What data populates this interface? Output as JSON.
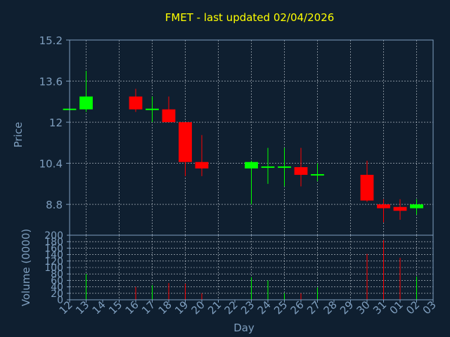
{
  "chart_data": {
    "type": "candlestick",
    "title": "FMET - last updated 02/04/2026",
    "xlabel": "Day",
    "price_panel": {
      "ylabel": "Price",
      "ylim": [
        7.6,
        15.2
      ],
      "yticks": [
        8.8,
        10.4,
        12,
        13.6,
        15.2
      ],
      "ytick_labels": [
        "8.8",
        "10.4",
        "12",
        "13.6",
        "15.2"
      ]
    },
    "volume_panel": {
      "ylabel": "Volume (0000)",
      "ylim": [
        0,
        200
      ],
      "yticks": [
        0,
        20,
        40,
        60,
        80,
        100,
        120,
        140,
        160,
        180,
        200
      ],
      "ytick_labels": [
        "0",
        "20",
        "40",
        "60",
        "80",
        "100",
        "120",
        "140",
        "160",
        "180",
        "200"
      ]
    },
    "x_tick_labels": [
      "12",
      "13",
      "14",
      "15",
      "16",
      "17",
      "18",
      "19",
      "20",
      "21",
      "22",
      "23",
      "24",
      "25",
      "26",
      "27",
      "28",
      "29",
      "30",
      "31",
      "01",
      "02",
      "03"
    ],
    "grid": true,
    "up_color": "#00ff00",
    "down_color": "#ff0000",
    "candles": [
      {
        "day": "12",
        "open": 12.5,
        "high": 12.5,
        "low": 12.5,
        "close": 12.5,
        "volume": 0
      },
      {
        "day": "13",
        "open": 12.5,
        "high": 14.0,
        "low": 12.4,
        "close": 13.0,
        "volume": 80
      },
      {
        "day": "16",
        "open": 13.0,
        "high": 13.3,
        "low": 12.4,
        "close": 12.5,
        "volume": 40
      },
      {
        "day": "17",
        "open": 12.5,
        "high": 13.0,
        "low": 12.0,
        "close": 12.5,
        "volume": 45
      },
      {
        "day": "18",
        "open": 12.5,
        "high": 13.0,
        "low": 12.0,
        "close": 12.0,
        "volume": 52
      },
      {
        "day": "19",
        "open": 12.0,
        "high": 12.0,
        "low": 9.9,
        "close": 10.45,
        "volume": 50
      },
      {
        "day": "20",
        "open": 10.45,
        "high": 11.5,
        "low": 9.9,
        "close": 10.2,
        "volume": 20
      },
      {
        "day": "23",
        "open": 10.2,
        "high": 10.5,
        "low": 8.8,
        "close": 10.45,
        "volume": 70
      },
      {
        "day": "24",
        "open": 10.25,
        "high": 11.0,
        "low": 9.6,
        "close": 10.25,
        "volume": 60
      },
      {
        "day": "25",
        "open": 10.25,
        "high": 11.0,
        "low": 9.5,
        "close": 10.25,
        "volume": 20
      },
      {
        "day": "26",
        "open": 10.25,
        "high": 11.0,
        "low": 9.5,
        "close": 9.95,
        "volume": 20
      },
      {
        "day": "27",
        "open": 9.95,
        "high": 10.4,
        "low": 9.7,
        "close": 9.95,
        "volume": 38
      },
      {
        "day": "30",
        "open": 9.95,
        "high": 10.5,
        "low": 8.9,
        "close": 8.95,
        "volume": 142
      },
      {
        "day": "31",
        "open": 8.8,
        "high": 9.0,
        "low": 8.1,
        "close": 8.65,
        "volume": 185
      },
      {
        "day": "01",
        "open": 8.7,
        "high": 9.0,
        "low": 8.2,
        "close": 8.55,
        "volume": 130
      },
      {
        "day": "02",
        "open": 8.65,
        "high": 9.0,
        "low": 8.4,
        "close": 8.8,
        "volume": 72
      }
    ]
  }
}
